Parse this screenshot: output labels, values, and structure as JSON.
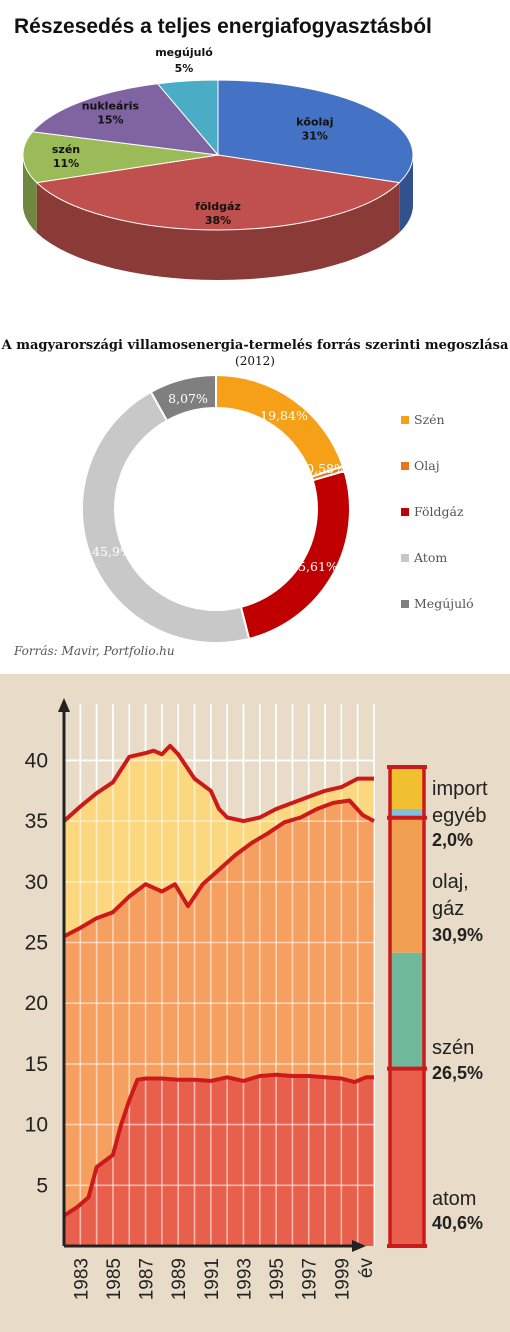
{
  "chart_data": [
    {
      "type": "pie",
      "title": "Részesedés a teljes energiafogyasztásból",
      "slices": [
        {
          "label": "kőolaj",
          "value": 31,
          "value_label": "31%",
          "color": "#4472c4"
        },
        {
          "label": "földgáz",
          "value": 38,
          "value_label": "38%",
          "color": "#c0504d"
        },
        {
          "label": "szén",
          "value": 11,
          "value_label": "11%",
          "color": "#9bbb59"
        },
        {
          "label": "nukleáris",
          "value": 15,
          "value_label": "15%",
          "color": "#8064a2"
        },
        {
          "label": "megújuló",
          "value": 5,
          "value_label": "5%",
          "color": "#4bacc6"
        }
      ]
    },
    {
      "type": "pie",
      "title": "A magyarországi villamosenergia-termelés forrás szerinti megoszlása",
      "subtitle": "(2012)",
      "legend_position": "right",
      "slices": [
        {
          "label": "Szén",
          "value": 19.84,
          "value_label": "19,84%",
          "color": "#f5a016"
        },
        {
          "label": "Olaj",
          "value": 0.58,
          "value_label": "0,58%",
          "color": "#e8741c"
        },
        {
          "label": "Földgáz",
          "value": 25.61,
          "value_label": "25,61%",
          "color": "#c00000"
        },
        {
          "label": "Atom",
          "value": 45.9,
          "value_label": "45,9%",
          "color": "#c8c8c8"
        },
        {
          "label": "Megújuló",
          "value": 8.07,
          "value_label": "8,07%",
          "color": "#7f7f7f"
        }
      ],
      "source": "Forrás: Mavir, Portfolio.hu"
    },
    {
      "type": "area",
      "xlabel": "év",
      "ylim": [
        0,
        43
      ],
      "xlim": [
        1982,
        2001
      ],
      "yticks": [
        "5",
        "10",
        "15",
        "20",
        "25",
        "30",
        "35",
        "40"
      ],
      "xticks": [
        "1983",
        "1985",
        "1987",
        "1989",
        "1991",
        "1993",
        "1995",
        "1997",
        "1999"
      ],
      "series": [
        {
          "color": "#e8604c",
          "x": [
            1982,
            1982.8,
            1983.5,
            1984,
            1985,
            1985.5,
            1986,
            1986.5,
            1987,
            1987.5,
            1988,
            1989,
            1990,
            1991,
            1992,
            1993,
            1994,
            1995,
            1996,
            1997,
            1998,
            1999,
            1999.8,
            2000.5,
            2001
          ],
          "y": [
            2.5,
            3.2,
            4,
            6.5,
            7.5,
            10,
            12,
            13.7,
            13.8,
            13.8,
            13.8,
            13.7,
            13.7,
            13.6,
            13.9,
            13.6,
            14,
            14.1,
            14,
            14,
            13.9,
            13.8,
            13.5,
            13.9,
            13.9
          ]
        },
        {
          "color": "#f5a060",
          "x": [
            1982,
            1983,
            1984,
            1985,
            1986,
            1987,
            1988,
            1988.8,
            1989.6,
            1990.5,
            1991.5,
            1992.5,
            1993.5,
            1994.5,
            1995.5,
            1996.5,
            1997.5,
            1998.5,
            1999.5,
            2000.3,
            2001
          ],
          "y": [
            25.5,
            26.2,
            27,
            27.5,
            28.8,
            29.8,
            29.2,
            29.8,
            28,
            29.8,
            31,
            32.2,
            33.2,
            34,
            34.9,
            35.3,
            36,
            36.5,
            36.7,
            35.5,
            35
          ]
        },
        {
          "color": "#fbd880",
          "x": [
            1982,
            1983,
            1984,
            1985,
            1986,
            1987,
            1987.5,
            1988,
            1988.5,
            1989,
            1990,
            1991,
            1991.5,
            1992,
            1993,
            1994,
            1995,
            1996,
            1997,
            1998,
            1999,
            2000,
            2001
          ],
          "y": [
            35,
            36.2,
            37.3,
            38.2,
            40.3,
            40.6,
            40.8,
            40.5,
            41.2,
            40.5,
            38.5,
            37.5,
            36,
            35.3,
            35,
            35.3,
            36,
            36.5,
            37,
            37.5,
            37.8,
            38.5,
            38.5
          ]
        }
      ],
      "stack_bar": [
        {
          "label": "import",
          "color": "#f0c030"
        },
        {
          "label": "egyéb",
          "value_label": "2,0%",
          "value": 2.0,
          "color": "#7fc0dc"
        },
        {
          "label": "olaj,",
          "label2": "gáz",
          "value_label": "30,9%",
          "value": 30.9,
          "color": "#f0a050"
        },
        {
          "label": "szén",
          "value_label": "26,5%",
          "value": 26.5,
          "color": "#6fb89a"
        },
        {
          "label": "atom",
          "value_label": "40,6%",
          "value": 40.6,
          "color": "#e8604c"
        }
      ]
    }
  ]
}
